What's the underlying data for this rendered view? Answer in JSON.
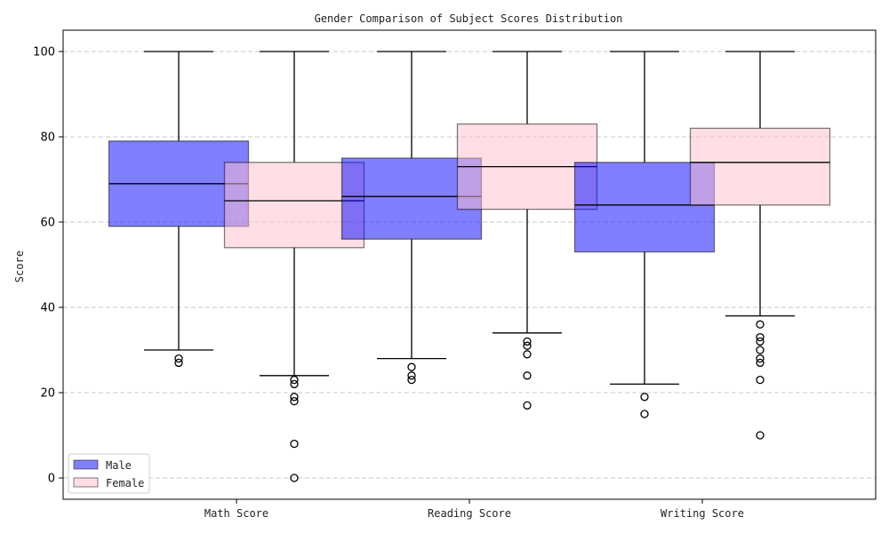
{
  "chart_data": {
    "type": "box",
    "title": "Gender Comparison of Subject Scores Distribution",
    "xlabel": "",
    "ylabel": "Score",
    "ylim": [
      -5,
      105
    ],
    "yticks": [
      0,
      20,
      40,
      60,
      80,
      100
    ],
    "grid": "y-dashed",
    "legend_position": "bottom-left",
    "categories": [
      "Math Score",
      "Reading Score",
      "Writing Score"
    ],
    "series": [
      {
        "name": "Male",
        "color": "#0000ff",
        "boxes": [
          {
            "whisker_low": 30,
            "q1": 59,
            "median": 69,
            "q3": 79,
            "whisker_high": 100,
            "outliers": [
              28,
              27
            ]
          },
          {
            "whisker_low": 28,
            "q1": 56,
            "median": 66,
            "q3": 75,
            "whisker_high": 100,
            "outliers": [
              26,
              24,
              23
            ]
          },
          {
            "whisker_low": 22,
            "q1": 53,
            "median": 64,
            "q3": 74,
            "whisker_high": 100,
            "outliers": [
              19,
              15
            ]
          }
        ]
      },
      {
        "name": "Female",
        "color": "#ffc0cb",
        "boxes": [
          {
            "whisker_low": 24,
            "q1": 54,
            "median": 65,
            "q3": 74,
            "whisker_high": 100,
            "outliers": [
              23,
              22,
              19,
              18,
              8,
              0
            ]
          },
          {
            "whisker_low": 34,
            "q1": 63,
            "median": 73,
            "q3": 83,
            "whisker_high": 100,
            "outliers": [
              32,
              31,
              29,
              24,
              17
            ]
          },
          {
            "whisker_low": 38,
            "q1": 64,
            "median": 74,
            "q3": 82,
            "whisker_high": 100,
            "outliers": [
              36,
              33,
              32,
              30,
              28,
              27,
              23,
              10
            ]
          }
        ]
      }
    ]
  }
}
